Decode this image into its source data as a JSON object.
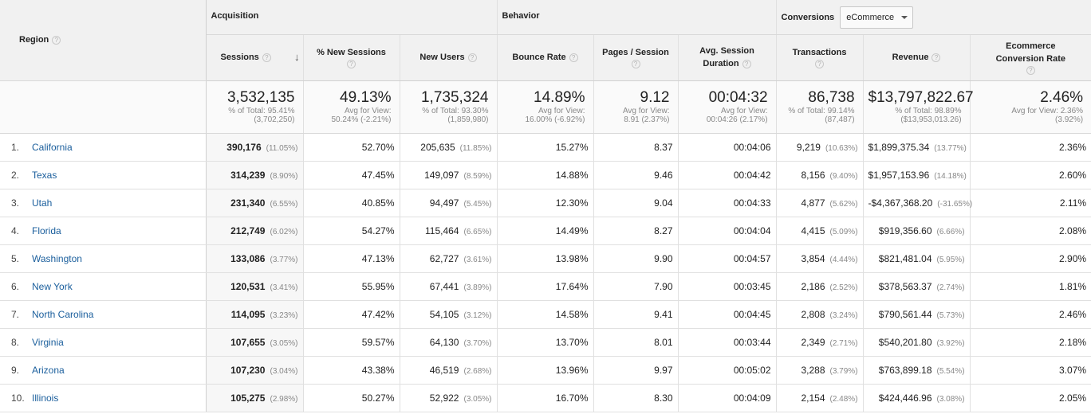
{
  "groups": {
    "acquisition": "Acquisition",
    "behavior": "Behavior",
    "conversions": "Conversions",
    "conversions_select": "eCommerce"
  },
  "columns": {
    "region": "Region",
    "sessions": "Sessions",
    "new_sessions": "% New Sessions",
    "new_users": "New Users",
    "bounce_rate": "Bounce Rate",
    "pages_session": "Pages / Session",
    "avg_duration_1": "Avg. Session",
    "avg_duration_2": "Duration",
    "transactions": "Transactions",
    "revenue": "Revenue",
    "conv_rate_1": "Ecommerce",
    "conv_rate_2": "Conversion Rate"
  },
  "icons": {
    "help": "help-icon",
    "sort": "sort-down-arrow-icon",
    "dropdown": "caret-down-icon"
  },
  "totals": {
    "sessions": {
      "value": "3,532,135",
      "l1": "% of Total: 95.41%",
      "l2": "(3,702,250)"
    },
    "new_sessions": {
      "value": "49.13%",
      "l1": "Avg for View:",
      "l2": "50.24% (-2.21%)"
    },
    "new_users": {
      "value": "1,735,324",
      "l1": "% of Total: 93.30%",
      "l2": "(1,859,980)"
    },
    "bounce_rate": {
      "value": "14.89%",
      "l1": "Avg for View:",
      "l2": "16.00% (-6.92%)"
    },
    "pages_session": {
      "value": "9.12",
      "l1": "Avg for View:",
      "l2": "8.91 (2.37%)"
    },
    "avg_duration": {
      "value": "00:04:32",
      "l1": "Avg for View:",
      "l2": "00:04:26 (2.17%)"
    },
    "transactions": {
      "value": "86,738",
      "l1": "% of Total: 99.14%",
      "l2": "(87,487)"
    },
    "revenue": {
      "value": "$13,797,822.67",
      "l1": "% of Total: 98.89%",
      "l2": "($13,953,013.26)"
    },
    "conv_rate": {
      "value": "2.46%",
      "l1": "Avg for View: 2.36%",
      "l2": "(3.92%)"
    }
  },
  "rows": [
    {
      "idx": "1.",
      "region": "California",
      "sessions": "390,176",
      "sessions_pct": "(11.05%)",
      "new_sessions": "52.70%",
      "new_users": "205,635",
      "new_users_pct": "(11.85%)",
      "bounce_rate": "15.27%",
      "pages_session": "8.37",
      "avg_duration": "00:04:06",
      "transactions": "9,219",
      "transactions_pct": "(10.63%)",
      "revenue": "$1,899,375.34",
      "revenue_pct": "(13.77%)",
      "conv_rate": "2.36%"
    },
    {
      "idx": "2.",
      "region": "Texas",
      "sessions": "314,239",
      "sessions_pct": "(8.90%)",
      "new_sessions": "47.45%",
      "new_users": "149,097",
      "new_users_pct": "(8.59%)",
      "bounce_rate": "14.88%",
      "pages_session": "9.46",
      "avg_duration": "00:04:42",
      "transactions": "8,156",
      "transactions_pct": "(9.40%)",
      "revenue": "$1,957,153.96",
      "revenue_pct": "(14.18%)",
      "conv_rate": "2.60%"
    },
    {
      "idx": "3.",
      "region": "Utah",
      "sessions": "231,340",
      "sessions_pct": "(6.55%)",
      "new_sessions": "40.85%",
      "new_users": "94,497",
      "new_users_pct": "(5.45%)",
      "bounce_rate": "12.30%",
      "pages_session": "9.04",
      "avg_duration": "00:04:33",
      "transactions": "4,877",
      "transactions_pct": "(5.62%)",
      "revenue": "-$4,367,368.20",
      "revenue_pct": "(-31.65%)",
      "conv_rate": "2.11%"
    },
    {
      "idx": "4.",
      "region": "Florida",
      "sessions": "212,749",
      "sessions_pct": "(6.02%)",
      "new_sessions": "54.27%",
      "new_users": "115,464",
      "new_users_pct": "(6.65%)",
      "bounce_rate": "14.49%",
      "pages_session": "8.27",
      "avg_duration": "00:04:04",
      "transactions": "4,415",
      "transactions_pct": "(5.09%)",
      "revenue": "$919,356.60",
      "revenue_pct": "(6.66%)",
      "conv_rate": "2.08%"
    },
    {
      "idx": "5.",
      "region": "Washington",
      "sessions": "133,086",
      "sessions_pct": "(3.77%)",
      "new_sessions": "47.13%",
      "new_users": "62,727",
      "new_users_pct": "(3.61%)",
      "bounce_rate": "13.98%",
      "pages_session": "9.90",
      "avg_duration": "00:04:57",
      "transactions": "3,854",
      "transactions_pct": "(4.44%)",
      "revenue": "$821,481.04",
      "revenue_pct": "(5.95%)",
      "conv_rate": "2.90%"
    },
    {
      "idx": "6.",
      "region": "New York",
      "sessions": "120,531",
      "sessions_pct": "(3.41%)",
      "new_sessions": "55.95%",
      "new_users": "67,441",
      "new_users_pct": "(3.89%)",
      "bounce_rate": "17.64%",
      "pages_session": "7.90",
      "avg_duration": "00:03:45",
      "transactions": "2,186",
      "transactions_pct": "(2.52%)",
      "revenue": "$378,563.37",
      "revenue_pct": "(2.74%)",
      "conv_rate": "1.81%"
    },
    {
      "idx": "7.",
      "region": "North Carolina",
      "sessions": "114,095",
      "sessions_pct": "(3.23%)",
      "new_sessions": "47.42%",
      "new_users": "54,105",
      "new_users_pct": "(3.12%)",
      "bounce_rate": "14.58%",
      "pages_session": "9.41",
      "avg_duration": "00:04:45",
      "transactions": "2,808",
      "transactions_pct": "(3.24%)",
      "revenue": "$790,561.44",
      "revenue_pct": "(5.73%)",
      "conv_rate": "2.46%"
    },
    {
      "idx": "8.",
      "region": "Virginia",
      "sessions": "107,655",
      "sessions_pct": "(3.05%)",
      "new_sessions": "59.57%",
      "new_users": "64,130",
      "new_users_pct": "(3.70%)",
      "bounce_rate": "13.70%",
      "pages_session": "8.01",
      "avg_duration": "00:03:44",
      "transactions": "2,349",
      "transactions_pct": "(2.71%)",
      "revenue": "$540,201.80",
      "revenue_pct": "(3.92%)",
      "conv_rate": "2.18%"
    },
    {
      "idx": "9.",
      "region": "Arizona",
      "sessions": "107,230",
      "sessions_pct": "(3.04%)",
      "new_sessions": "43.38%",
      "new_users": "46,519",
      "new_users_pct": "(2.68%)",
      "bounce_rate": "13.96%",
      "pages_session": "9.97",
      "avg_duration": "00:05:02",
      "transactions": "3,288",
      "transactions_pct": "(3.79%)",
      "revenue": "$763,899.18",
      "revenue_pct": "(5.54%)",
      "conv_rate": "3.07%"
    },
    {
      "idx": "10.",
      "region": "Illinois",
      "sessions": "105,275",
      "sessions_pct": "(2.98%)",
      "new_sessions": "50.27%",
      "new_users": "52,922",
      "new_users_pct": "(3.05%)",
      "bounce_rate": "16.70%",
      "pages_session": "8.30",
      "avg_duration": "00:04:09",
      "transactions": "2,154",
      "transactions_pct": "(2.48%)",
      "revenue": "$424,446.96",
      "revenue_pct": "(3.08%)",
      "conv_rate": "2.05%"
    }
  ]
}
